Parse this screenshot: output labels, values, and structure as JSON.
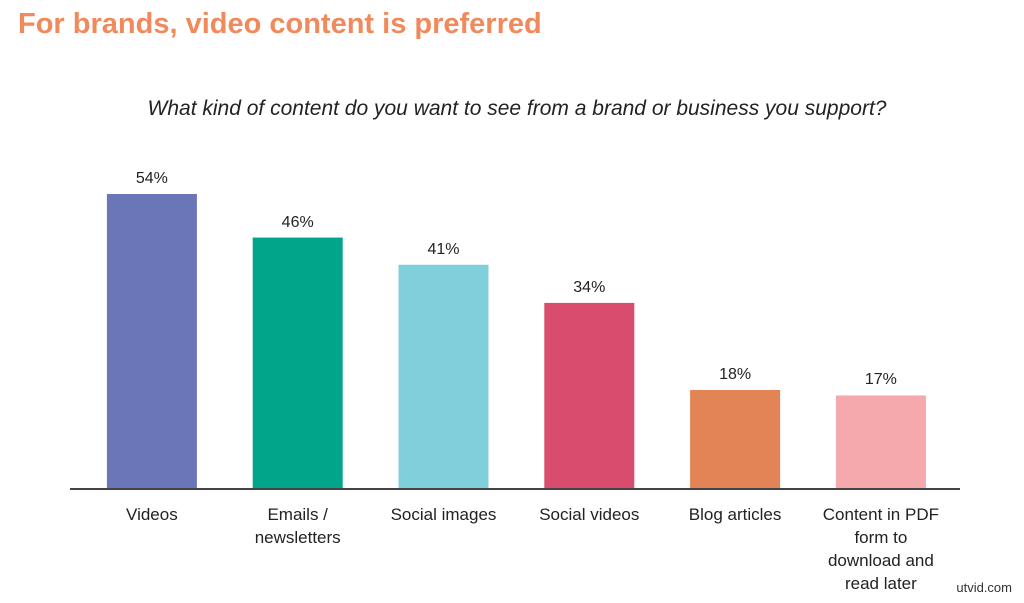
{
  "chart_data": {
    "type": "bar",
    "title": "For brands, video content is preferred",
    "subtitle": "What kind of content do you want to see from a brand or business you support?",
    "categories": [
      "Videos",
      "Emails / newsletters",
      "Social images",
      "Social videos",
      "Blog articles",
      "Content in PDF form to download and read later"
    ],
    "values": [
      54,
      46,
      41,
      34,
      18,
      17
    ],
    "value_labels": [
      "54%",
      "46%",
      "41%",
      "34%",
      "18%",
      "17%"
    ],
    "colors": [
      "#6b76b8",
      "#00a58a",
      "#80d0dc",
      "#d94c6e",
      "#e38457",
      "#f5a9ac"
    ],
    "watermark": "utvid.com"
  }
}
